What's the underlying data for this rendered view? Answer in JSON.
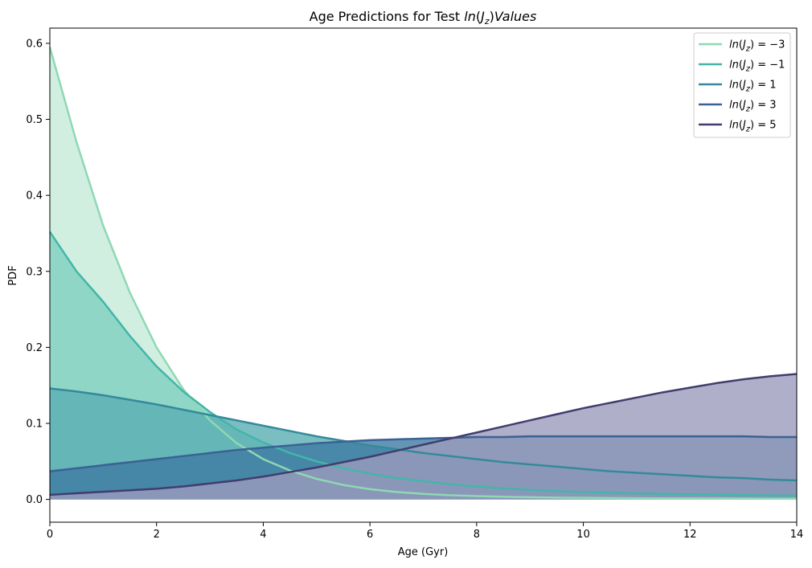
{
  "chart_data": {
    "type": "area",
    "title": "Age Predictions for Test ln(J_z) Values",
    "xlabel": "Age (Gyr)",
    "ylabel": "PDF",
    "xlim": [
      0,
      14
    ],
    "ylim": [
      -0.03,
      0.62
    ],
    "xticks": [
      0,
      2,
      4,
      6,
      8,
      10,
      12,
      14
    ],
    "yticks": [
      0.0,
      0.1,
      0.2,
      0.3,
      0.4,
      0.5,
      0.6
    ],
    "xtick_labels": [
      "0",
      "2",
      "4",
      "6",
      "8",
      "10",
      "12",
      "14"
    ],
    "ytick_labels": [
      "0.0",
      "0.1",
      "0.2",
      "0.3",
      "0.4",
      "0.5",
      "0.6"
    ],
    "grid": false,
    "legend_position": "top-right",
    "x": [
      0,
      0.5,
      1,
      1.5,
      2,
      2.5,
      3,
      3.5,
      4,
      4.5,
      5,
      5.5,
      6,
      6.5,
      7,
      7.5,
      8,
      8.5,
      9,
      9.5,
      10,
      10.5,
      11,
      11.5,
      12,
      12.5,
      13,
      13.5,
      14
    ],
    "series": [
      {
        "name": "ln(J_z) = −3",
        "color": "#8fd8b4",
        "fill": "#c5ebd8",
        "values": [
          0.595,
          0.47,
          0.36,
          0.272,
          0.2,
          0.145,
          0.104,
          0.074,
          0.053,
          0.038,
          0.027,
          0.019,
          0.0135,
          0.0098,
          0.0072,
          0.0055,
          0.0043,
          0.0035,
          0.0029,
          0.0024,
          0.0021,
          0.0018,
          0.0016,
          0.0015,
          0.0014,
          0.0013,
          0.0012,
          0.0011,
          0.001
        ]
      },
      {
        "name": "ln(J_z) = −1",
        "color": "#42b6a8",
        "fill": "#80d0c0",
        "values": [
          0.352,
          0.3,
          0.26,
          0.215,
          0.175,
          0.142,
          0.115,
          0.092,
          0.075,
          0.061,
          0.05,
          0.041,
          0.034,
          0.028,
          0.024,
          0.02,
          0.017,
          0.0145,
          0.0125,
          0.011,
          0.0098,
          0.0088,
          0.0079,
          0.0072,
          0.0066,
          0.0061,
          0.0057,
          0.0053,
          0.005
        ]
      },
      {
        "name": "ln(J_z) = 1",
        "color": "#348a9b",
        "fill": "#5aaeb3",
        "values": [
          0.146,
          0.142,
          0.137,
          0.131,
          0.125,
          0.118,
          0.111,
          0.104,
          0.097,
          0.09,
          0.083,
          0.077,
          0.071,
          0.066,
          0.061,
          0.057,
          0.053,
          0.049,
          0.046,
          0.043,
          0.04,
          0.037,
          0.035,
          0.033,
          0.031,
          0.029,
          0.028,
          0.026,
          0.025
        ]
      },
      {
        "name": "ln(J_z) = 3",
        "color": "#3a6294",
        "fill": "#3f7aa3",
        "values": [
          0.037,
          0.041,
          0.045,
          0.049,
          0.053,
          0.057,
          0.061,
          0.065,
          0.068,
          0.071,
          0.074,
          0.076,
          0.078,
          0.079,
          0.08,
          0.081,
          0.082,
          0.082,
          0.083,
          0.083,
          0.083,
          0.083,
          0.083,
          0.083,
          0.083,
          0.083,
          0.083,
          0.082,
          0.082
        ]
      },
      {
        "name": "ln(J_z) = 5",
        "color": "#413d6e",
        "fill": "#9b9bbd",
        "values": [
          0.006,
          0.008,
          0.01,
          0.012,
          0.014,
          0.017,
          0.021,
          0.025,
          0.03,
          0.036,
          0.042,
          0.049,
          0.056,
          0.064,
          0.072,
          0.08,
          0.088,
          0.096,
          0.104,
          0.112,
          0.12,
          0.127,
          0.134,
          0.141,
          0.147,
          0.153,
          0.158,
          0.162,
          0.165
        ]
      }
    ]
  }
}
